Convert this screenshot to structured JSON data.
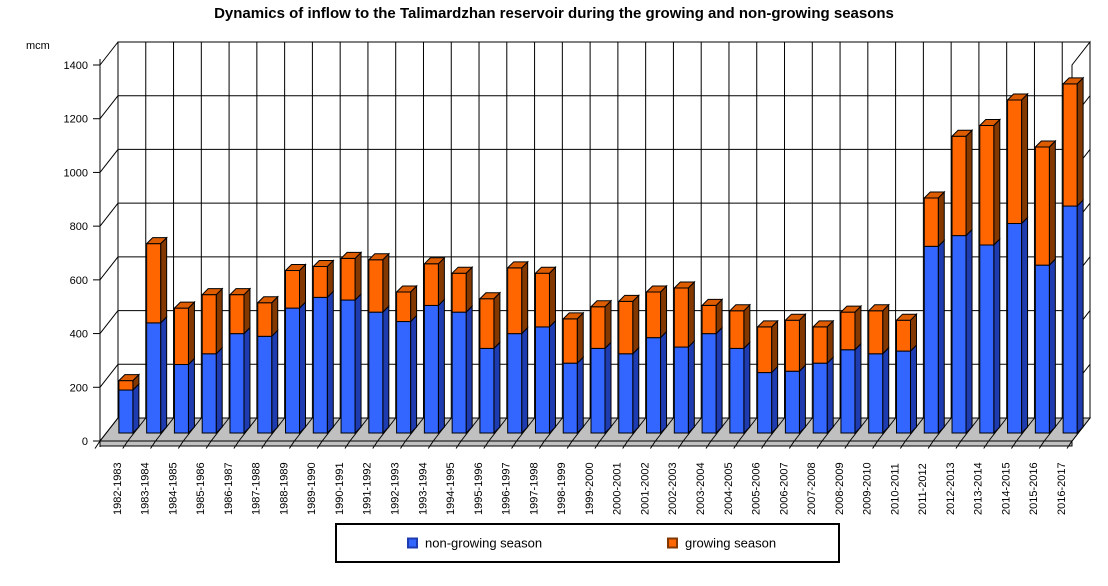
{
  "title": "Dynamics of inflow to the Talimardzhan reservoir during the growing and non-growing seasons",
  "y_axis": {
    "unit_label": "mcm",
    "min": 0,
    "max": 1400,
    "step": 200,
    "tick_labels": [
      "0",
      "200",
      "400",
      "600",
      "800",
      "1000",
      "1200",
      "1400"
    ]
  },
  "legend": {
    "items": [
      {
        "label": "non-growing season",
        "color": "#3366FF",
        "border": "#1F3BB0"
      },
      {
        "label": "growing season",
        "color": "#FF6600",
        "border": "#833800"
      }
    ]
  },
  "colors": {
    "bar_blue_front": "#3366FF",
    "bar_blue_side": "#1F3BB0",
    "bar_orange_front": "#FF6600",
    "bar_orange_side": "#833800",
    "bar_orange_top": "#DD5C00",
    "floor": "#C0C0C0",
    "gridline": "#000000",
    "wall": "#FFFFFF"
  },
  "chart_data": {
    "type": "bar",
    "stacked": true,
    "style": "3d-column",
    "title": "Dynamics of inflow to the Talimardzhan reservoir during the growing and non-growing seasons",
    "xlabel": "",
    "ylabel": "mcm",
    "ylim": [
      0,
      1400
    ],
    "ytick_step": 200,
    "grid": true,
    "legend_position": "bottom",
    "categories": [
      "1982-1983",
      "1983-1984",
      "1984-1985",
      "1985-1986",
      "1986-1987",
      "1987-1988",
      "1988-1989",
      "1989-1990",
      "1990-1991",
      "1991-1992",
      "1992-1993",
      "1993-1994",
      "1994-1995",
      "1995-1996",
      "1996-1997",
      "1997-1998",
      "1998-1999",
      "1999-2000",
      "2000-2001",
      "2001-2002",
      "2002-2003",
      "2003-2004",
      "2004-2005",
      "2005-2006",
      "2006-2007",
      "2007-2008",
      "2008-2009",
      "2009-2010",
      "2010-2011",
      "2011-2012",
      "2012-2013",
      "2013-2014",
      "2014-2015",
      "2015-2016",
      "2016-2017"
    ],
    "series": [
      {
        "name": "non-growing season",
        "color": "#3366FF",
        "values": [
          160,
          410,
          255,
          295,
          370,
          360,
          465,
          505,
          495,
          450,
          415,
          475,
          450,
          315,
          370,
          395,
          260,
          315,
          295,
          355,
          320,
          370,
          315,
          225,
          230,
          260,
          310,
          295,
          305,
          695,
          735,
          700,
          780,
          625,
          845
        ]
      },
      {
        "name": "growing season",
        "color": "#FF6600",
        "values": [
          35,
          295,
          210,
          220,
          145,
          125,
          140,
          115,
          155,
          195,
          110,
          155,
          145,
          185,
          245,
          200,
          165,
          155,
          195,
          170,
          220,
          105,
          140,
          170,
          190,
          135,
          140,
          160,
          115,
          180,
          370,
          445,
          460,
          440,
          455
        ]
      }
    ]
  }
}
